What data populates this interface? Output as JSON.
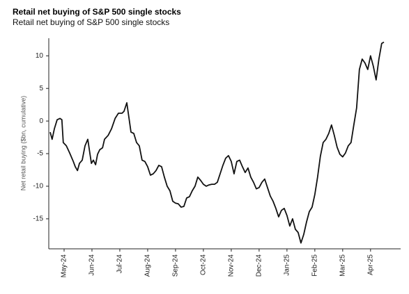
{
  "chart_data": {
    "type": "line",
    "title": "Retail net buying of S&P 500 single stocks",
    "subtitle": "Retail net buying of S&P 500 single stocks",
    "y_label": "Net retail buying ($bn, cumulative)",
    "color": "#111111",
    "x": [
      -0.5,
      -0.43,
      -0.35,
      -0.25,
      -0.15,
      -0.08,
      -0.03,
      0.08,
      0.2,
      0.33,
      0.4,
      0.48,
      0.55,
      0.65,
      0.75,
      0.85,
      0.93,
      0.98,
      1.05,
      1.13,
      1.2,
      1.28,
      1.38,
      1.45,
      1.58,
      1.7,
      1.83,
      1.95,
      2.08,
      2.15,
      2.25,
      2.33,
      2.4,
      2.5,
      2.6,
      2.7,
      2.8,
      2.9,
      3.0,
      3.1,
      3.2,
      3.3,
      3.4,
      3.5,
      3.6,
      3.7,
      3.8,
      3.9,
      4.0,
      4.1,
      4.2,
      4.3,
      4.4,
      4.5,
      4.6,
      4.7,
      4.8,
      4.9,
      5.0,
      5.1,
      5.2,
      5.3,
      5.4,
      5.5,
      5.6,
      5.7,
      5.8,
      5.9,
      6.0,
      6.1,
      6.2,
      6.3,
      6.4,
      6.5,
      6.6,
      6.7,
      6.8,
      6.9,
      7.0,
      7.1,
      7.2,
      7.3,
      7.4,
      7.5,
      7.6,
      7.7,
      7.8,
      7.9,
      8.0,
      8.1,
      8.2,
      8.3,
      8.4,
      8.5,
      8.6,
      8.7,
      8.8,
      8.9,
      9.0,
      9.1,
      9.2,
      9.3,
      9.4,
      9.5,
      9.6,
      9.7,
      9.8,
      9.9,
      10.0,
      10.1,
      10.2,
      10.3,
      10.4,
      10.5,
      10.6,
      10.7,
      10.8,
      10.9,
      11.0,
      11.1,
      11.2,
      11.3,
      11.4,
      11.48
    ],
    "values": [
      -1.7,
      -2.8,
      -1.2,
      0.2,
      0.4,
      0.2,
      -3.3,
      -3.8,
      -4.9,
      -6.2,
      -7.0,
      -7.6,
      -6.5,
      -6.0,
      -3.8,
      -2.8,
      -5.1,
      -6.5,
      -6.0,
      -6.7,
      -5.1,
      -4.4,
      -4.1,
      -2.8,
      -2.2,
      -1.2,
      0.4,
      1.2,
      1.2,
      1.5,
      2.8,
      0.4,
      -1.7,
      -1.9,
      -3.3,
      -3.8,
      -6.0,
      -6.2,
      -7.0,
      -8.3,
      -8.1,
      -7.6,
      -6.8,
      -7.0,
      -8.6,
      -10.0,
      -10.7,
      -12.3,
      -12.6,
      -12.7,
      -13.2,
      -13.1,
      -11.8,
      -11.6,
      -10.7,
      -10.0,
      -8.6,
      -9.1,
      -9.7,
      -10.0,
      -9.8,
      -9.7,
      -9.7,
      -9.4,
      -8.1,
      -6.8,
      -5.7,
      -5.3,
      -6.2,
      -8.1,
      -6.2,
      -6.0,
      -7.0,
      -7.9,
      -7.2,
      -8.6,
      -9.4,
      -10.4,
      -10.2,
      -9.4,
      -8.9,
      -10.2,
      -11.5,
      -12.3,
      -13.4,
      -14.7,
      -13.7,
      -13.4,
      -14.5,
      -16.1,
      -15.0,
      -16.6,
      -17.1,
      -18.7,
      -17.4,
      -15.5,
      -13.9,
      -13.2,
      -11.3,
      -8.6,
      -5.4,
      -3.3,
      -2.8,
      -1.9,
      -0.6,
      -2.2,
      -4.0,
      -5.1,
      -5.5,
      -4.9,
      -3.8,
      -3.3,
      -0.6,
      2.0,
      7.9,
      9.5,
      8.9,
      7.9,
      10.0,
      8.4,
      6.3,
      9.5,
      11.9,
      12.1
    ],
    "xlim": [
      -0.55,
      12.08
    ],
    "ylim": [
      -19.6,
      12.7
    ],
    "yticks": [
      10,
      5,
      0,
      -5,
      -10,
      -15
    ],
    "xticks": [
      {
        "value": 0,
        "label": "May-24"
      },
      {
        "value": 1,
        "label": "Jun-24"
      },
      {
        "value": 2,
        "label": "Jul-24"
      },
      {
        "value": 3,
        "label": "Aug-24"
      },
      {
        "value": 4,
        "label": "Sep-24"
      },
      {
        "value": 5,
        "label": "Oct-24"
      },
      {
        "value": 6,
        "label": "Nov-24"
      },
      {
        "value": 7,
        "label": "Dec-24"
      },
      {
        "value": 8,
        "label": "Jan-25"
      },
      {
        "value": 9,
        "label": "Feb-25"
      },
      {
        "value": 10,
        "label": "Mar-25"
      },
      {
        "value": 11,
        "label": "Apr-25"
      }
    ],
    "grid": false
  }
}
